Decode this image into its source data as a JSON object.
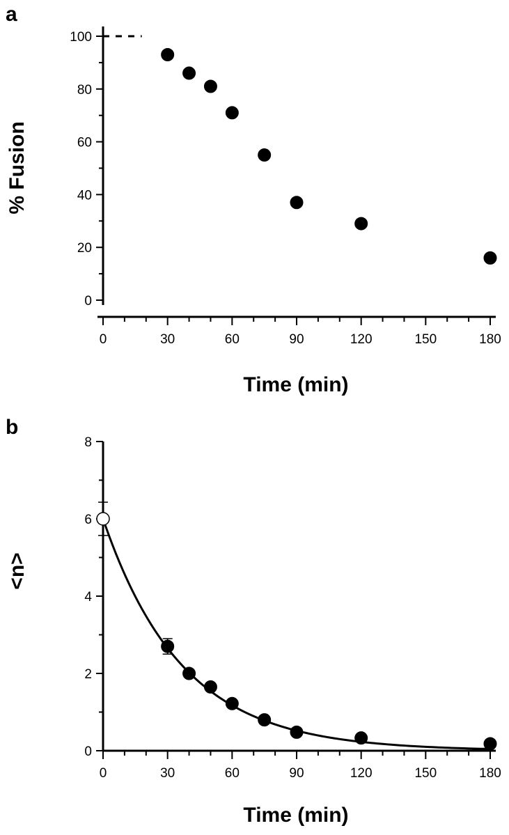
{
  "chart_data": [
    {
      "panel": "a",
      "type": "scatter",
      "xlabel": "Time (min)",
      "ylabel": "% Fusion",
      "xlim": [
        0,
        180
      ],
      "ylim": [
        0,
        100
      ],
      "xticks": [
        0,
        30,
        60,
        90,
        120,
        150,
        180
      ],
      "yticks": [
        0,
        20,
        40,
        60,
        80,
        100
      ],
      "reference_line": {
        "y": 100,
        "x_range": [
          0,
          18
        ],
        "style": "dotted"
      },
      "series": [
        {
          "marker": "filled-circle",
          "x": [
            30,
            40,
            50,
            60,
            75,
            90,
            120,
            180
          ],
          "y": [
            93,
            86,
            81,
            71,
            55,
            37,
            29,
            16
          ]
        }
      ]
    },
    {
      "panel": "b",
      "type": "scatter",
      "xlabel": "Time (min)",
      "ylabel": "<n>",
      "xlim": [
        0,
        180
      ],
      "ylim": [
        0,
        8
      ],
      "xticks": [
        0,
        30,
        60,
        90,
        120,
        150,
        180
      ],
      "yticks": [
        0,
        2,
        4,
        6,
        8
      ],
      "series": [
        {
          "marker": "open-circle",
          "x": [
            0
          ],
          "y": [
            6.0
          ],
          "yerr": [
            0.43
          ]
        },
        {
          "marker": "filled-circle",
          "x": [
            30,
            40,
            50,
            60,
            75,
            90,
            120,
            180
          ],
          "y": [
            2.7,
            2.0,
            1.65,
            1.22,
            0.8,
            0.48,
            0.33,
            0.18
          ],
          "yerr": [
            0.2,
            0,
            0,
            0,
            0,
            0,
            0,
            0
          ]
        }
      ],
      "fit_curve": {
        "type": "exponential-decay",
        "y0": 6.0,
        "k": 0.0272,
        "x_range": [
          0,
          180
        ]
      }
    }
  ]
}
